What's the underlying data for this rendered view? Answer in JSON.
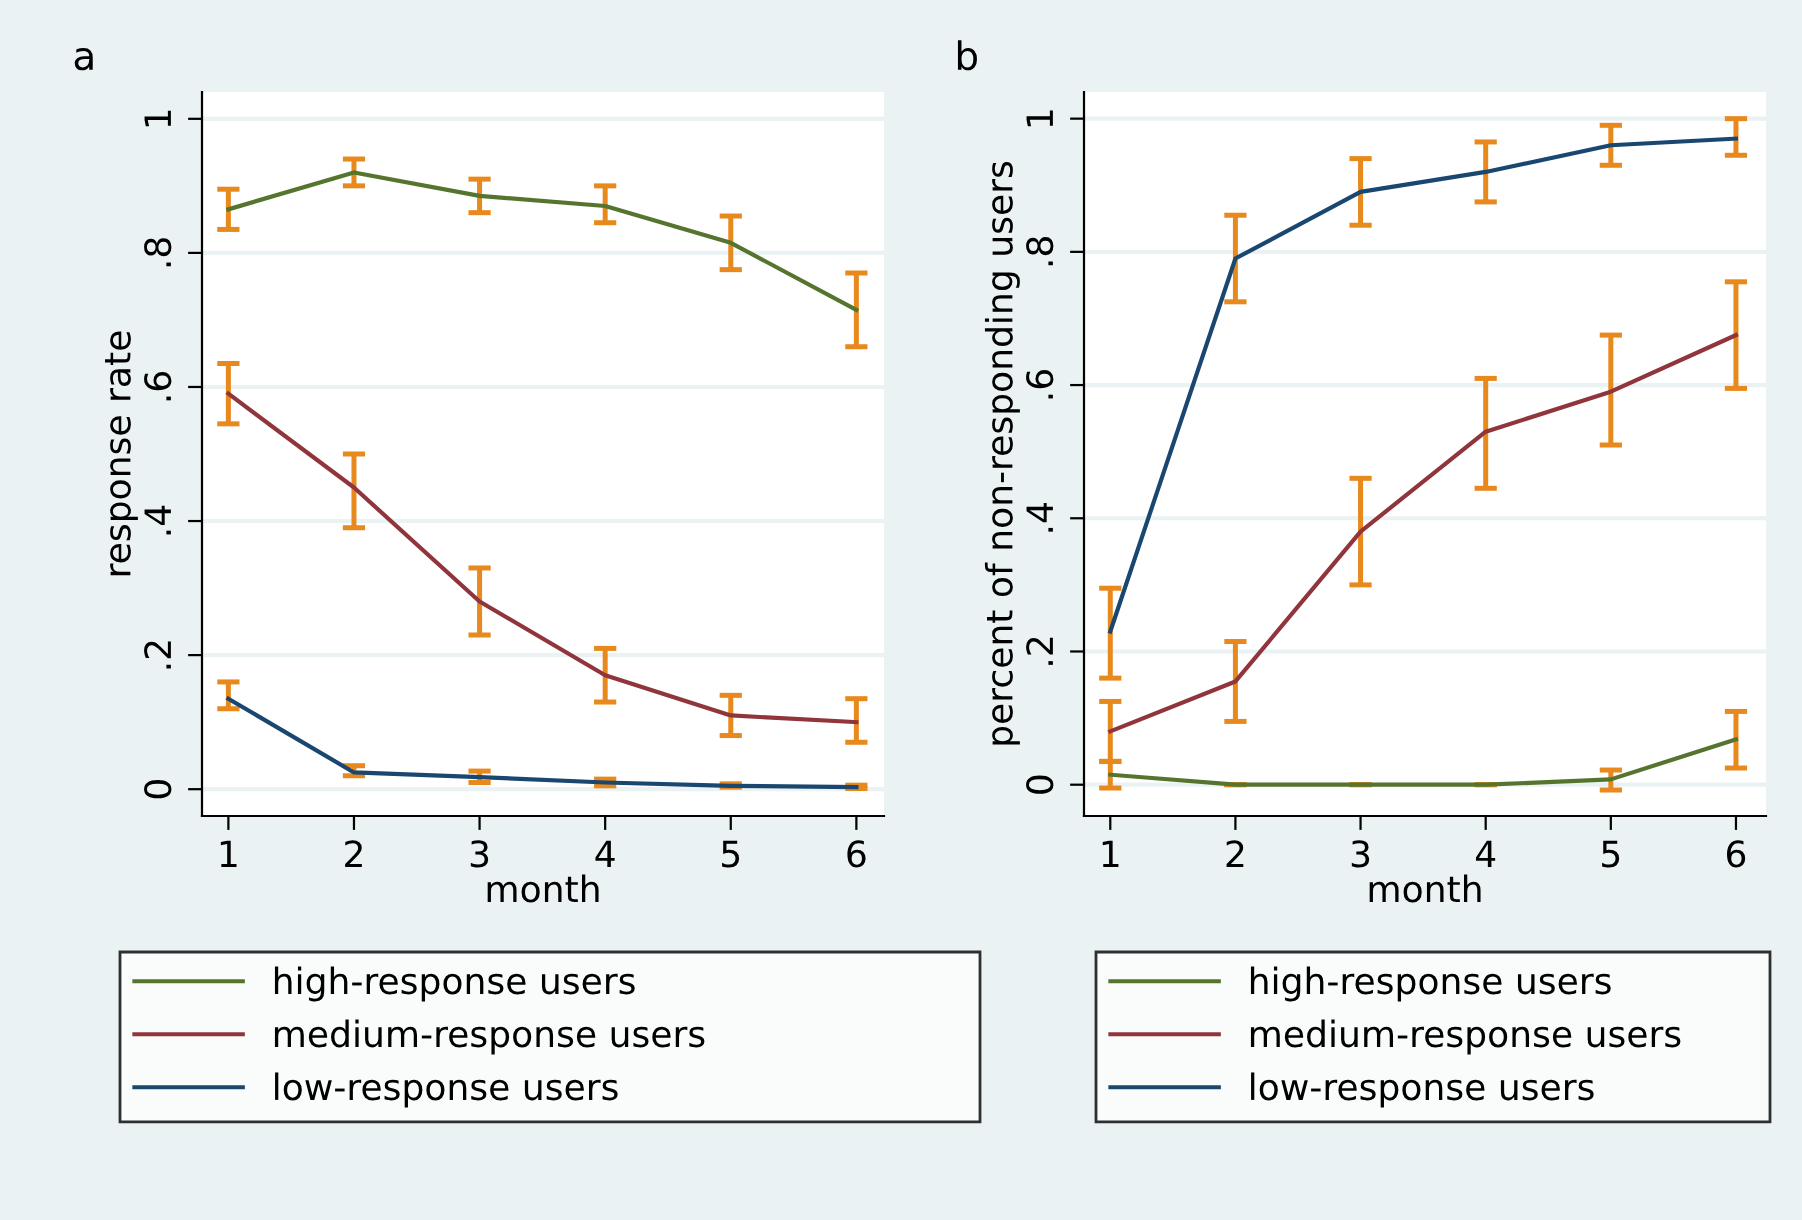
{
  "chart_data": [
    {
      "type": "line",
      "title": "a",
      "xlabel": "month",
      "ylabel": "response rate",
      "x": [
        1,
        2,
        3,
        4,
        5,
        6
      ],
      "xlim": [
        0.79,
        6.22
      ],
      "xticks": [
        1,
        2,
        3,
        4,
        5,
        6
      ],
      "ylim": [
        -0.04,
        1.04
      ],
      "yticks": [
        {
          "value": 0,
          "label": "0"
        },
        {
          "value": 0.2,
          "label": ".2"
        },
        {
          "value": 0.4,
          "label": ".4"
        },
        {
          "value": 0.6,
          "label": ".6"
        },
        {
          "value": 0.8,
          "label": ".8"
        },
        {
          "value": 1,
          "label": "1"
        }
      ],
      "grid": "y",
      "legend": "bottom",
      "marker": "none",
      "line_style": "solid",
      "series": [
        {
          "name": "high-response users",
          "color": "#55752f",
          "values": [
            0.865,
            0.92,
            0.885,
            0.87,
            0.815,
            0.715
          ],
          "errors": [
            [
              0.835,
              0.895
            ],
            [
              0.9,
              0.94
            ],
            [
              0.86,
              0.91
            ],
            [
              0.845,
              0.9
            ],
            [
              0.775,
              0.855
            ],
            [
              0.66,
              0.77
            ]
          ]
        },
        {
          "name": "medium-response users",
          "color": "#90353b",
          "values": [
            0.59,
            0.45,
            0.28,
            0.17,
            0.11,
            0.1
          ],
          "errors": [
            [
              0.545,
              0.635
            ],
            [
              0.39,
              0.5
            ],
            [
              0.23,
              0.33
            ],
            [
              0.13,
              0.21
            ],
            [
              0.08,
              0.14
            ],
            [
              0.07,
              0.135
            ]
          ]
        },
        {
          "name": "low-response users",
          "color": "#1a476f",
          "values": [
            0.135,
            0.025,
            0.018,
            0.01,
            0.005,
            0.003
          ],
          "errors": [
            [
              0.12,
              0.16
            ],
            [
              0.02,
              0.035
            ],
            [
              0.01,
              0.027
            ],
            [
              0.005,
              0.015
            ],
            [
              0.003,
              0.008
            ],
            [
              0.001,
              0.006
            ]
          ]
        }
      ]
    },
    {
      "type": "line",
      "title": "b",
      "xlabel": "month",
      "ylabel": "percent of non-responding users",
      "x": [
        1,
        2,
        3,
        4,
        5,
        6
      ],
      "xlim": [
        0.79,
        6.24
      ],
      "xticks": [
        1,
        2,
        3,
        4,
        5,
        6
      ],
      "ylim": [
        -0.047,
        1.04
      ],
      "yticks": [
        {
          "value": 0,
          "label": "0"
        },
        {
          "value": 0.2,
          "label": ".2"
        },
        {
          "value": 0.4,
          "label": ".4"
        },
        {
          "value": 0.6,
          "label": ".6"
        },
        {
          "value": 0.8,
          "label": ".8"
        },
        {
          "value": 1,
          "label": "1"
        }
      ],
      "grid": "y",
      "legend": "bottom",
      "marker": "none",
      "line_style": "solid",
      "series": [
        {
          "name": "high-response users",
          "color": "#55752f",
          "values": [
            0.015,
            0,
            0,
            0,
            0.008,
            0.068
          ],
          "errors": [
            [
              -0.005,
              0.035
            ],
            [
              0,
              0
            ],
            [
              0,
              0
            ],
            [
              0,
              0
            ],
            [
              -0.008,
              0.022
            ],
            [
              0.025,
              0.11
            ]
          ]
        },
        {
          "name": "medium-response users",
          "color": "#90353b",
          "values": [
            0.08,
            0.155,
            0.38,
            0.53,
            0.59,
            0.675
          ],
          "errors": [
            [
              0.035,
              0.125
            ],
            [
              0.095,
              0.215
            ],
            [
              0.3,
              0.46
            ],
            [
              0.445,
              0.61
            ],
            [
              0.51,
              0.675
            ],
            [
              0.595,
              0.755
            ]
          ]
        },
        {
          "name": "low-response users",
          "color": "#1a476f",
          "values": [
            0.23,
            0.79,
            0.89,
            0.92,
            0.96,
            0.97
          ],
          "errors": [
            [
              0.16,
              0.295
            ],
            [
              0.725,
              0.855
            ],
            [
              0.84,
              0.94
            ],
            [
              0.875,
              0.965
            ],
            [
              0.93,
              0.99
            ],
            [
              0.945,
              1.0
            ]
          ]
        }
      ]
    }
  ]
}
